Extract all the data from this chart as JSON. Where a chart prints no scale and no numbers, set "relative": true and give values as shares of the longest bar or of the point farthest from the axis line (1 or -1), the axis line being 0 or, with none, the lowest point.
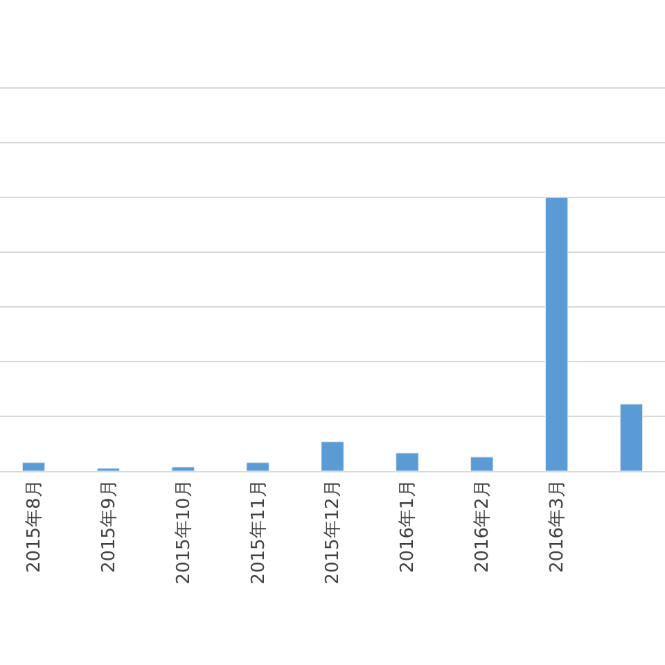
{
  "chart_data": {
    "type": "bar",
    "relative": true,
    "categories": [
      "2015年8月",
      "2015年9月",
      "2015年10月",
      "2015年11月",
      "2015年12月",
      "2016年1月",
      "2016年2月",
      "2016年3月",
      null
    ],
    "values": [
      0.031,
      0.01,
      0.015,
      0.031,
      0.107,
      0.066,
      0.051,
      1,
      0.245
    ],
    "color": "#5b9bd5",
    "grid": "y"
  }
}
